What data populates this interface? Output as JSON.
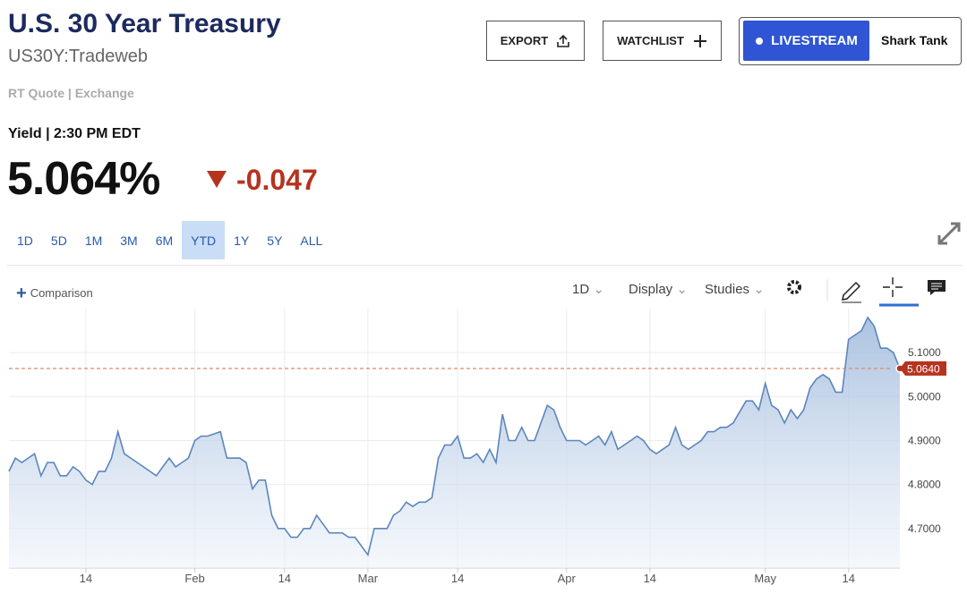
{
  "header": {
    "title": "U.S. 30 Year Treasury",
    "symbol": "US30Y:Tradeweb",
    "source": "RT Quote | Exchange"
  },
  "buttons": {
    "export": "EXPORT",
    "watchlist": "WATCHLIST",
    "livestream": "LIVESTREAM",
    "show": "Shark Tank"
  },
  "quote": {
    "label": "Yield | 2:30 PM EDT",
    "value": "5.064%",
    "change": "-0.047"
  },
  "ranges": [
    "1D",
    "5D",
    "1M",
    "3M",
    "6M",
    "YTD",
    "1Y",
    "5Y",
    "ALL"
  ],
  "active_range": 5,
  "toolbar": {
    "comparison": "Comparison",
    "interval": "1D",
    "display": "Display",
    "studies": "Studies"
  },
  "chart_data": {
    "type": "line",
    "x": [
      2,
      3,
      4,
      5,
      6,
      7,
      8,
      9,
      10,
      11,
      12,
      13,
      14,
      15,
      16,
      17,
      18,
      19,
      20,
      21,
      22,
      23,
      24,
      25,
      26,
      27,
      28,
      29,
      30,
      31,
      32,
      33,
      35,
      36,
      37,
      38,
      39,
      40,
      41,
      42,
      43,
      44,
      45,
      46,
      47,
      48,
      49,
      50,
      51,
      52,
      53,
      54,
      55,
      56,
      57,
      58,
      59,
      60,
      61,
      62,
      63,
      64,
      65,
      66,
      67,
      68,
      69,
      70,
      71,
      72,
      73,
      74,
      75,
      76,
      77,
      78,
      79,
      80,
      81,
      82,
      83,
      84,
      85,
      86,
      87,
      88,
      89,
      90,
      91,
      92,
      93,
      94,
      95,
      96,
      97,
      98,
      99,
      100,
      101,
      102,
      103,
      104,
      105,
      106,
      107,
      108,
      109,
      110,
      111,
      112,
      113,
      114,
      115,
      117,
      118,
      119,
      120,
      121,
      122,
      123,
      124,
      125,
      126,
      127,
      128,
      129,
      130,
      131,
      132,
      133,
      134,
      135,
      136,
      137,
      138,
      139,
      140,
      141
    ],
    "series": [
      {
        "color": "#5b86bd",
        "values": [
          4.83,
          4.86,
          4.85,
          4.86,
          4.87,
          4.82,
          4.85,
          4.85,
          4.82,
          4.82,
          4.84,
          4.83,
          4.81,
          4.8,
          4.83,
          4.83,
          4.86,
          4.92,
          4.87,
          4.86,
          4.85,
          4.84,
          4.83,
          4.82,
          4.84,
          4.86,
          4.84,
          4.85,
          4.86,
          4.9,
          4.91,
          4.91,
          4.92,
          4.86,
          4.86,
          4.86,
          4.85,
          4.79,
          4.81,
          4.81,
          4.73,
          4.7,
          4.7,
          4.68,
          4.68,
          4.7,
          4.7,
          4.73,
          4.71,
          4.69,
          4.69,
          4.69,
          4.68,
          4.68,
          4.66,
          4.64,
          4.7,
          4.7,
          4.7,
          4.73,
          4.74,
          4.76,
          4.75,
          4.76,
          4.76,
          4.77,
          4.86,
          4.89,
          4.89,
          4.91,
          4.86,
          4.86,
          4.87,
          4.85,
          4.88,
          4.85,
          4.96,
          4.9,
          4.9,
          4.93,
          4.9,
          4.9,
          4.94,
          4.98,
          4.97,
          4.93,
          4.9,
          4.9,
          4.9,
          4.89,
          4.9,
          4.91,
          4.89,
          4.92,
          4.88,
          4.89,
          4.9,
          4.91,
          4.9,
          4.88,
          4.87,
          4.88,
          4.89,
          4.93,
          4.89,
          4.88,
          4.89,
          4.9,
          4.92,
          4.92,
          4.93,
          4.93,
          4.94,
          4.99,
          4.99,
          4.97,
          5.03,
          4.98,
          4.97,
          4.94,
          4.97,
          4.95,
          4.97,
          5.02,
          5.04,
          5.05,
          5.04,
          5.01,
          5.01,
          5.13,
          5.14,
          5.15,
          5.18,
          5.16,
          5.11,
          5.11,
          5.1,
          5.064
        ]
      }
    ],
    "xlim": [
      2,
      141
    ],
    "ylim": [
      4.61,
      5.2
    ],
    "xticks": [
      {
        "value": 14,
        "label": "14"
      },
      {
        "value": 31,
        "label": "Feb"
      },
      {
        "value": 45,
        "label": "14"
      },
      {
        "value": 58,
        "label": "Mar"
      },
      {
        "value": 72,
        "label": "14"
      },
      {
        "value": 89,
        "label": "Apr"
      },
      {
        "value": 102,
        "label": "14"
      },
      {
        "value": 120,
        "label": "May"
      },
      {
        "value": 133,
        "label": "14"
      }
    ],
    "yticks": [
      {
        "value": 4.7,
        "label": "4.7000"
      },
      {
        "value": 4.8,
        "label": "4.8000"
      },
      {
        "value": 4.9,
        "label": "4.9000"
      },
      {
        "value": 5.0,
        "label": "5.0000"
      },
      {
        "value": 5.1,
        "label": "5.1000"
      }
    ],
    "current": {
      "value": 5.064,
      "label": "5.0640"
    },
    "grid": true
  }
}
